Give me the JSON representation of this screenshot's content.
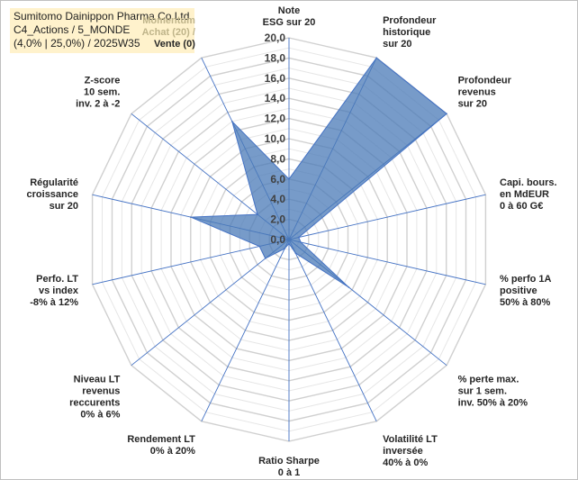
{
  "title": {
    "line1": "Sumitomo Dainippon Pharma Co Ltd",
    "line2": "C4_Actions / 5_MONDE",
    "line3": "(4,0% | 25,0%) / 2025W35"
  },
  "chart_data": {
    "type": "radar",
    "axes": [
      {
        "label": [
          "Note",
          "ESG sur 20"
        ]
      },
      {
        "label": [
          "Profondeur",
          "historique",
          "sur 20"
        ]
      },
      {
        "label": [
          "Profondeur",
          "revenus",
          "sur 20"
        ]
      },
      {
        "label": [
          "Capi. bours.",
          "en MdEUR",
          "0 à 60 G€"
        ]
      },
      {
        "label": [
          "% perfo 1A",
          "positive",
          "50% à 80%"
        ]
      },
      {
        "label": [
          "% perte max.",
          "sur 1 sem.",
          "inv. 50% à 20%"
        ]
      },
      {
        "label": [
          "Volatilité LT",
          "inversée",
          "40% à 0%"
        ]
      },
      {
        "label": [
          "Ratio Sharpe",
          "0 à 1"
        ]
      },
      {
        "label": [
          "Rendement LT",
          "0% à 20%"
        ]
      },
      {
        "label": [
          "Niveau LT",
          "revenus",
          "reccurents",
          "0% à 6%"
        ]
      },
      {
        "label": [
          "Perfo. LT",
          "vs index",
          "-8% à 12%"
        ]
      },
      {
        "label": [
          "Régularité",
          "croissance",
          "sur 20"
        ]
      },
      {
        "label": [
          "Z-score",
          "10 sem.",
          "inv. 2 à -2"
        ]
      },
      {
        "label": [
          "Momentum",
          "Achat (20) /",
          "Vente (0)"
        ]
      }
    ],
    "series": [
      {
        "values": [
          6.0,
          20.0,
          20.0,
          1.0,
          1.2,
          7.6,
          1.5,
          0.4,
          1.0,
          3.0,
          3.0,
          10.0,
          4.0,
          13.0
        ]
      }
    ],
    "ticks": [
      "0,0",
      "2,0",
      "4,0",
      "6,0",
      "8,0",
      "10,0",
      "12,0",
      "14,0",
      "16,0",
      "18,0",
      "20,0"
    ],
    "rmin": 0,
    "rmax": 20,
    "grid": true,
    "fill_color": "#4a7ab7",
    "line_color": "#4472c4",
    "grid_color": "#d9d9d9"
  }
}
